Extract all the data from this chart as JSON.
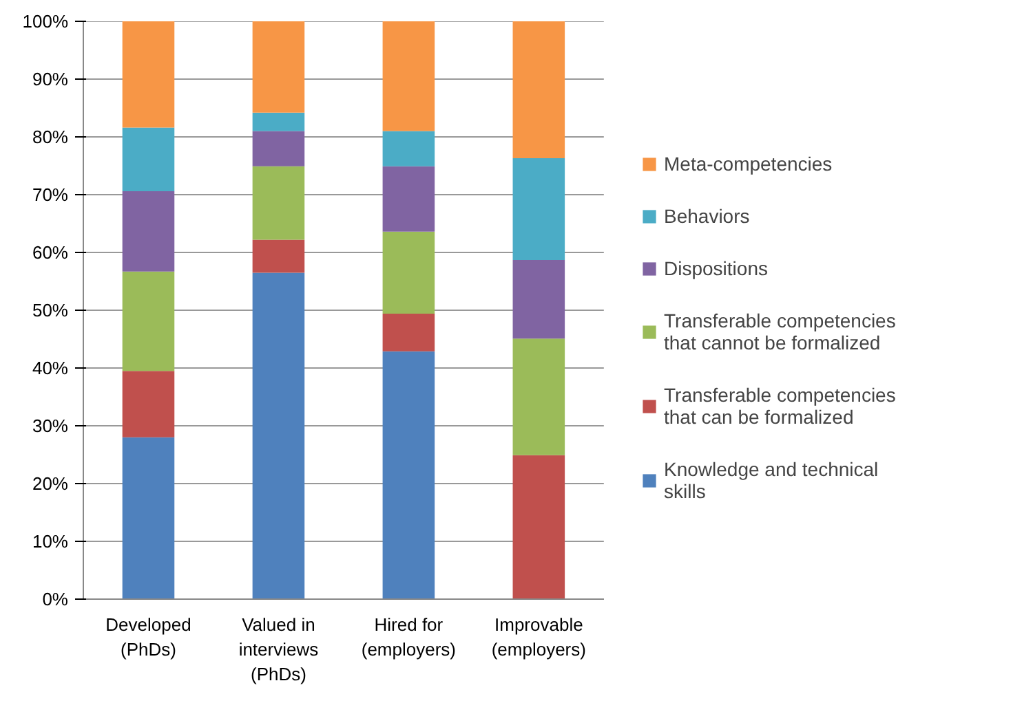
{
  "chart_data": {
    "type": "bar",
    "stacked": true,
    "categories": [
      "Developed (PhDs)",
      "Valued in interviews (PhDs)",
      "Hired for (employers)",
      "Improvable (employers)"
    ],
    "series": [
      {
        "name": "Knowledge and technical skills",
        "color": "#4f81bd",
        "values": [
          28.0,
          56.5,
          42.9,
          0
        ]
      },
      {
        "name": "Transferable competencies that can be formalized",
        "color": "#c0504d",
        "values": [
          11.5,
          5.7,
          6.5,
          24.9
        ]
      },
      {
        "name": "Transferable competencies that cannot be formalized",
        "color": "#9bbb59",
        "values": [
          17.2,
          12.7,
          14.2,
          20.2
        ]
      },
      {
        "name": "Dispositions",
        "color": "#8064a2",
        "values": [
          13.9,
          6.1,
          11.3,
          13.6
        ]
      },
      {
        "name": "Behaviors",
        "color": "#4bacc6",
        "values": [
          11.0,
          3.2,
          6.1,
          17.6
        ]
      },
      {
        "name": "Meta-competencies",
        "color": "#f79646",
        "values": [
          18.4,
          15.8,
          19.0,
          23.7
        ]
      }
    ],
    "ylim": [
      0,
      100
    ],
    "yticks": [
      {
        "value": 0,
        "label": "0%"
      },
      {
        "value": 10,
        "label": "10%"
      },
      {
        "value": 20,
        "label": "20%"
      },
      {
        "value": 30,
        "label": "30%"
      },
      {
        "value": 40,
        "label": "40%"
      },
      {
        "value": 50,
        "label": "50%"
      },
      {
        "value": 60,
        "label": "60%"
      },
      {
        "value": 70,
        "label": "70%"
      },
      {
        "value": 80,
        "label": "80%"
      },
      {
        "value": 90,
        "label": "90%"
      },
      {
        "value": 100,
        "label": "100%"
      }
    ],
    "grid": "y",
    "legend": "right"
  }
}
